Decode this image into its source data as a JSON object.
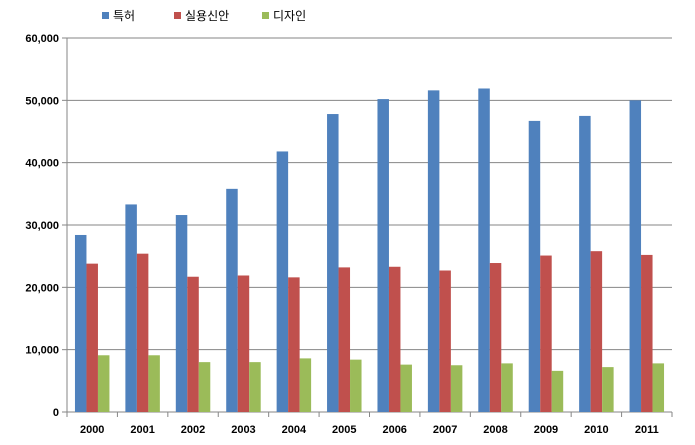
{
  "chart_data": {
    "type": "bar",
    "title": "",
    "xlabel": "",
    "ylabel": "",
    "categories": [
      "2000",
      "2001",
      "2002",
      "2003",
      "2004",
      "2005",
      "2006",
      "2007",
      "2008",
      "2009",
      "2010",
      "2011"
    ],
    "series": [
      {
        "name": "특허",
        "color": "#4F81BD",
        "values": [
          28400,
          33300,
          31600,
          35800,
          41800,
          47800,
          50200,
          51600,
          51900,
          46700,
          47500,
          50000
        ]
      },
      {
        "name": "실용신안",
        "color": "#C0504D",
        "values": [
          23800,
          25400,
          21700,
          21900,
          21600,
          23200,
          23300,
          22700,
          23900,
          25100,
          25800,
          25200
        ]
      },
      {
        "name": "디자인",
        "color": "#9BBB59",
        "values": [
          9100,
          9100,
          8000,
          8000,
          8600,
          8400,
          7600,
          7500,
          7800,
          6600,
          7200,
          7800
        ]
      }
    ],
    "ylim": [
      0,
      60000
    ],
    "yticks": [
      "0",
      "10,000",
      "20,000",
      "30,000",
      "40,000",
      "50,000",
      "60,000"
    ],
    "grid": true,
    "legend_position": "top"
  }
}
